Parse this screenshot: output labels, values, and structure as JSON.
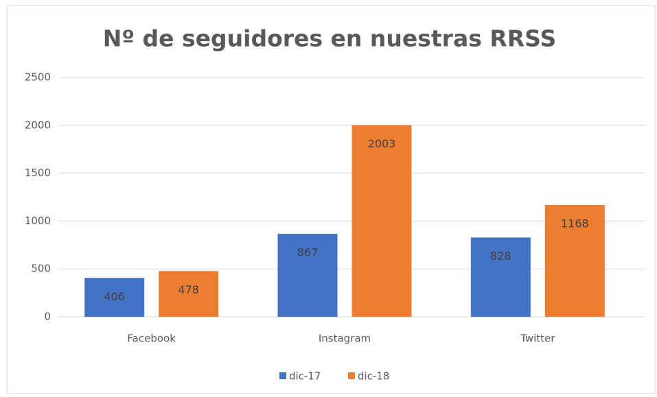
{
  "chart_data": {
    "type": "bar",
    "title": "Nº de seguidores en nuestras RRSS",
    "categories": [
      "Facebook",
      "Instagram",
      "Twitter"
    ],
    "series": [
      {
        "name": "dic-17",
        "color": "#4472c4",
        "values": [
          406,
          867,
          828
        ]
      },
      {
        "name": "dic-18",
        "color": "#ed7d31",
        "values": [
          478,
          2003,
          1168
        ]
      }
    ],
    "ylim": [
      0,
      2500
    ],
    "yticks": [
      0,
      500,
      1000,
      1500,
      2000,
      2500
    ],
    "grid": true,
    "legend": "bottom"
  }
}
